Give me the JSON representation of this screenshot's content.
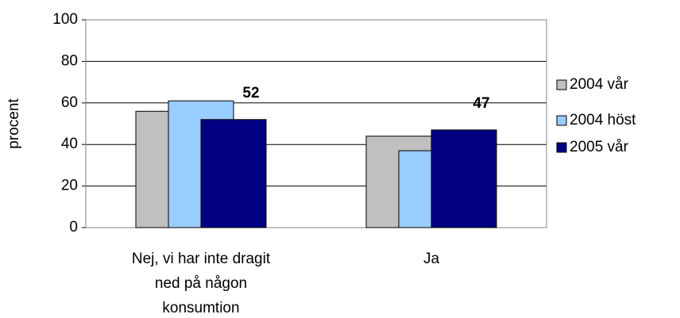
{
  "chart_data": {
    "type": "bar",
    "y_label": "procent",
    "categories": [
      [
        "Nej, vi har inte dragit",
        "ned på någon",
        "konsumtion"
      ],
      [
        "Ja"
      ]
    ],
    "series": [
      {
        "name": "2004 vår",
        "color": "#c0c0c0",
        "values": [
          56,
          44
        ]
      },
      {
        "name": "2004 höst",
        "color": "#99ccff",
        "values": [
          61,
          37
        ]
      },
      {
        "name": "2005 vår",
        "color": "#000080",
        "values": [
          52,
          47
        ],
        "data_labels": true
      }
    ],
    "ylim": [
      0,
      100
    ],
    "yticks": [
      0,
      20,
      40,
      60,
      80,
      100
    ],
    "grid": true,
    "legend": "right"
  }
}
